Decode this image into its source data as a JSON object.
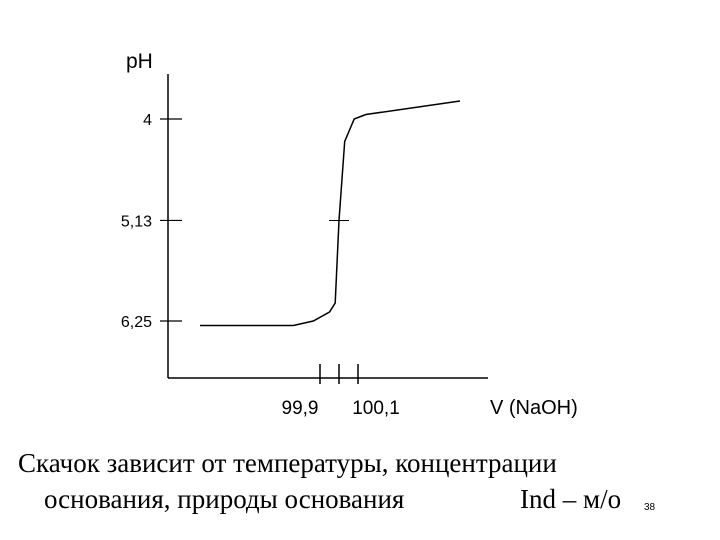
{
  "chart_data": {
    "type": "line",
    "ylabel": "pH",
    "xlabel": "V (NaOH)",
    "y_inverted": true,
    "y_ticks": [
      {
        "value": 4,
        "label": "4"
      },
      {
        "value": 5.13,
        "label": "5,13"
      },
      {
        "value": 6.25,
        "label": "6,25"
      }
    ],
    "x_ticks": [
      {
        "value": 99.9,
        "label": "99,9"
      },
      {
        "value": 100,
        "label": ""
      },
      {
        "value": 100.1,
        "label": "100,1"
      }
    ],
    "series": [
      {
        "points": [
          [
            99.0,
            6.3
          ],
          [
            99.7,
            6.3
          ],
          [
            99.85,
            6.25
          ],
          [
            99.95,
            6.15
          ],
          [
            99.98,
            6.05
          ],
          [
            100.0,
            5.13
          ],
          [
            100.03,
            4.25
          ],
          [
            100.08,
            4.0
          ],
          [
            100.17,
            3.95
          ],
          [
            101.0,
            3.8
          ]
        ]
      }
    ],
    "equivalence_tick": {
      "x": 100.0,
      "y": 5.13
    }
  },
  "caption": {
    "line1": "Скачок зависит от температуры, концентрации",
    "line2": "основания, природы основания",
    "ind": "Ind – м/о"
  },
  "slide_number": "38"
}
